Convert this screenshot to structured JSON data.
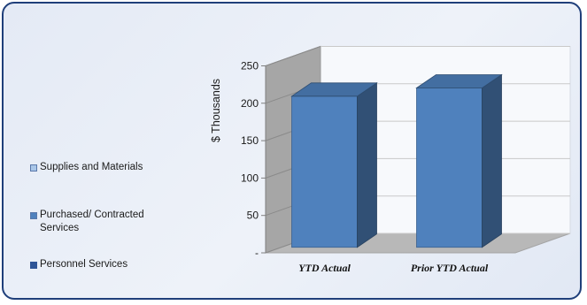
{
  "chart_data": {
    "type": "bar",
    "categories": [
      "YTD Actual",
      "Prior YTD Actual"
    ],
    "series": [
      {
        "name": "Supplies and Materials",
        "values": [
          0,
          0
        ],
        "color": "#9dc3e6"
      },
      {
        "name": "Purchased/ Contracted Services",
        "values": [
          0,
          0
        ],
        "color": "#4a7cc4"
      },
      {
        "name": "Personnel Services",
        "values": [
          202,
          213
        ],
        "color": "#4f81bd"
      }
    ],
    "ylabel": "$ Thousands",
    "ylim": [
      0,
      250
    ],
    "yticks": [
      "-",
      "50",
      "100",
      "150",
      "200",
      "250"
    ],
    "grid": true,
    "legend_position": "left",
    "style": "3d-column"
  },
  "legend": {
    "items": [
      {
        "label": "Supplies and Materials",
        "color": "#a9c6e8"
      },
      {
        "label": "Purchased/ Contracted Services",
        "color": "#4f81bd"
      },
      {
        "label": "Personnel Services",
        "color": "#2f5597"
      }
    ]
  }
}
